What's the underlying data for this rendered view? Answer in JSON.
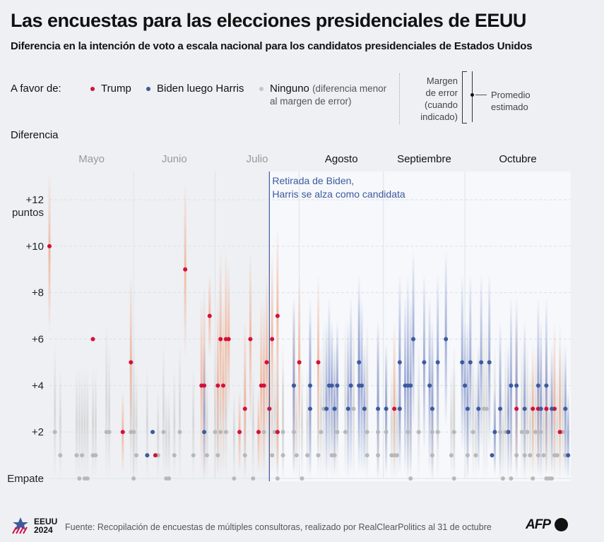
{
  "header": {
    "title": "Las encuestas para las elecciones presidenciales de EEUU",
    "subtitle": "Diferencia en la intención de voto a escala nacional para los candidatos presidenciales de Estados Unidos"
  },
  "legend": {
    "label": "A favor de:",
    "items": [
      {
        "key": "trump",
        "label": "Trump",
        "color": "#d50f3c"
      },
      {
        "key": "dem",
        "label": "Biden luego Harris",
        "color": "#3d5a9e"
      },
      {
        "key": "none",
        "label": "Ninguno",
        "note": "(diferencia menor al margen de error)",
        "color": "#b8b8b8"
      }
    ],
    "moe_label": "Margen de error (cuando indicado)",
    "avg_label": "Promedio estimado"
  },
  "colors": {
    "trump": "#d50f3c",
    "trump_band": "#f0b49a",
    "dem": "#3d5a9e",
    "dem_band": "#8e9dcf",
    "none": "#b8b8b8",
    "none_band": "#d4d4d4",
    "annotation": "#3d5a9e"
  },
  "chart_data": {
    "type": "scatter",
    "title": "Las encuestas para las elecciones presidenciales de EEUU",
    "ylabel": "Diferencia",
    "ylim": [
      0,
      13
    ],
    "yticks": [
      {
        "value": 0,
        "label": "Empate"
      },
      {
        "value": 2,
        "label": "+2"
      },
      {
        "value": 4,
        "label": "+4"
      },
      {
        "value": 6,
        "label": "+6"
      },
      {
        "value": 8,
        "label": "+8"
      },
      {
        "value": 10,
        "label": "+10"
      },
      {
        "value": 12,
        "label": "+12",
        "sublabel": "puntos"
      }
    ],
    "x_unit": "day index from 1 May 2024",
    "xlim": [
      0,
      183
    ],
    "months": [
      {
        "label": "Mayo",
        "start": 0,
        "active": false
      },
      {
        "label": "Junio",
        "start": 31,
        "active": false
      },
      {
        "label": "Julio",
        "start": 61,
        "active": false
      },
      {
        "label": "Agosto",
        "start": 92,
        "active": true
      },
      {
        "label": "Septiembre",
        "start": 123,
        "active": true
      },
      {
        "label": "Octubre",
        "start": 153,
        "active": true
      }
    ],
    "annotation": {
      "x": 81,
      "text_line1": "Retirada de Biden,",
      "text_line2": "Harris se alza como candidata"
    },
    "grid": true,
    "series": [
      {
        "name": "Trump",
        "key": "trump",
        "points": [
          [
            0,
            10,
            3
          ],
          [
            16,
            6,
            0
          ],
          [
            27,
            2,
            1
          ],
          [
            30,
            5,
            3
          ],
          [
            39,
            1,
            0
          ],
          [
            50,
            9,
            3
          ],
          [
            56,
            4,
            3
          ],
          [
            57,
            4,
            3.5
          ],
          [
            59,
            7,
            1
          ],
          [
            62,
            4,
            3
          ],
          [
            63,
            6,
            3
          ],
          [
            64,
            4,
            3
          ],
          [
            65,
            6,
            3
          ],
          [
            66,
            6,
            2.5
          ],
          [
            70,
            2,
            1
          ],
          [
            72,
            3,
            3
          ],
          [
            74,
            6,
            3
          ],
          [
            77,
            2,
            1
          ],
          [
            78,
            4,
            3
          ],
          [
            79,
            4,
            3
          ],
          [
            80,
            5,
            3
          ],
          [
            81,
            3,
            3
          ],
          [
            82,
            6,
            3
          ],
          [
            84,
            2,
            2
          ],
          [
            84,
            7,
            3
          ],
          [
            90,
            4,
            3
          ],
          [
            92,
            5,
            3
          ],
          [
            99,
            5,
            3
          ],
          [
            127,
            3,
            3
          ],
          [
            172,
            3,
            3
          ],
          [
            178,
            3,
            2
          ],
          [
            180,
            3,
            2
          ],
          [
            183,
            3,
            2
          ],
          [
            186,
            3,
            3
          ],
          [
            188,
            2,
            3
          ]
        ]
      },
      {
        "name": "Biden luego Harris",
        "key": "dem",
        "points": [
          [
            36,
            1,
            0
          ],
          [
            38,
            2,
            0
          ],
          [
            57,
            2,
            3
          ],
          [
            90,
            4,
            3
          ],
          [
            96,
            4,
            3
          ],
          [
            96,
            3,
            3
          ],
          [
            102,
            3,
            3
          ],
          [
            103,
            4,
            3
          ],
          [
            104,
            4,
            2
          ],
          [
            105,
            3,
            2
          ],
          [
            106,
            4,
            2
          ],
          [
            110,
            3,
            3
          ],
          [
            111,
            4,
            3
          ],
          [
            114,
            4,
            3
          ],
          [
            114,
            5,
            3
          ],
          [
            115,
            4,
            3
          ],
          [
            116,
            3,
            2
          ],
          [
            121,
            3,
            3
          ],
          [
            124,
            3,
            2
          ],
          [
            129,
            5,
            3
          ],
          [
            129,
            3,
            2
          ],
          [
            131,
            4,
            3
          ],
          [
            132,
            4,
            4
          ],
          [
            133,
            4,
            3
          ],
          [
            134,
            6,
            3
          ],
          [
            138,
            5,
            3
          ],
          [
            140,
            4,
            3
          ],
          [
            141,
            3,
            3
          ],
          [
            143,
            5,
            3
          ],
          [
            146,
            6,
            3
          ],
          [
            152,
            5,
            3
          ],
          [
            153,
            4,
            2
          ],
          [
            154,
            3,
            3
          ],
          [
            155,
            5,
            3
          ],
          [
            158,
            3,
            2
          ],
          [
            159,
            5,
            3
          ],
          [
            162,
            5,
            3
          ],
          [
            163,
            1,
            0
          ],
          [
            164,
            2,
            1
          ],
          [
            166,
            3,
            3
          ],
          [
            169,
            2,
            3
          ],
          [
            170,
            4,
            3
          ],
          [
            172,
            4,
            3
          ],
          [
            175,
            3,
            3
          ],
          [
            180,
            4,
            3
          ],
          [
            181,
            3,
            3
          ],
          [
            183,
            4,
            3
          ],
          [
            185,
            3,
            2
          ],
          [
            190,
            3,
            2
          ],
          [
            191,
            1,
            2
          ]
        ]
      },
      {
        "name": "Ninguno",
        "key": "none",
        "points": [
          [
            2,
            2,
            3
          ],
          [
            4,
            1,
            3
          ],
          [
            10,
            1,
            3
          ],
          [
            11,
            0,
            4
          ],
          [
            12,
            1,
            3
          ],
          [
            13,
            0,
            4
          ],
          [
            14,
            0,
            4
          ],
          [
            16,
            1,
            3
          ],
          [
            17,
            1,
            3
          ],
          [
            21,
            2,
            4
          ],
          [
            22,
            2,
            3
          ],
          [
            30,
            2,
            4
          ],
          [
            31,
            2,
            3
          ],
          [
            31,
            0,
            3
          ],
          [
            32,
            1,
            3
          ],
          [
            36,
            1,
            3
          ],
          [
            40,
            1,
            2
          ],
          [
            42,
            2,
            3
          ],
          [
            43,
            0,
            3
          ],
          [
            44,
            0,
            3
          ],
          [
            46,
            1,
            3
          ],
          [
            48,
            2,
            3
          ],
          [
            53,
            1,
            3
          ],
          [
            58,
            1,
            3
          ],
          [
            61,
            2,
            3
          ],
          [
            62,
            1,
            3
          ],
          [
            63,
            2,
            3
          ],
          [
            65,
            2,
            3
          ],
          [
            68,
            0,
            3
          ],
          [
            72,
            1,
            3
          ],
          [
            75,
            0,
            4
          ],
          [
            79,
            2,
            3
          ],
          [
            82,
            1,
            3
          ],
          [
            83,
            2,
            3
          ],
          [
            84,
            0,
            4
          ],
          [
            84,
            2,
            4
          ],
          [
            86,
            1,
            3
          ],
          [
            86,
            2,
            3
          ],
          [
            90,
            2,
            3
          ],
          [
            91,
            1,
            3
          ],
          [
            93,
            0,
            4
          ],
          [
            95,
            1,
            3
          ],
          [
            99,
            1,
            3
          ],
          [
            100,
            2,
            3
          ],
          [
            101,
            3,
            3
          ],
          [
            104,
            1,
            3
          ],
          [
            105,
            1,
            3
          ],
          [
            106,
            2,
            3
          ],
          [
            109,
            2,
            4
          ],
          [
            112,
            3,
            3
          ],
          [
            117,
            1,
            4
          ],
          [
            117,
            2,
            4
          ],
          [
            121,
            1,
            4
          ],
          [
            121,
            2,
            4
          ],
          [
            124,
            2,
            3
          ],
          [
            126,
            1,
            3
          ],
          [
            127,
            1,
            3
          ],
          [
            128,
            1,
            3
          ],
          [
            132,
            2,
            3
          ],
          [
            133,
            0,
            4
          ],
          [
            136,
            2,
            3
          ],
          [
            141,
            2,
            3
          ],
          [
            141,
            1,
            3
          ],
          [
            143,
            2,
            3
          ],
          [
            148,
            1,
            3
          ],
          [
            149,
            0,
            4
          ],
          [
            149,
            2,
            3
          ],
          [
            154,
            1,
            3
          ],
          [
            156,
            2,
            3
          ],
          [
            157,
            1,
            3
          ],
          [
            160,
            3,
            3
          ],
          [
            161,
            3,
            3
          ],
          [
            164,
            2,
            3
          ],
          [
            166,
            2,
            3
          ],
          [
            167,
            0,
            3
          ],
          [
            168,
            2,
            3
          ],
          [
            170,
            0,
            4
          ],
          [
            172,
            1,
            3
          ],
          [
            174,
            2,
            3
          ],
          [
            175,
            1,
            3
          ],
          [
            176,
            2,
            3
          ],
          [
            177,
            1,
            3
          ],
          [
            178,
            0,
            4
          ],
          [
            179,
            2,
            3
          ],
          [
            180,
            1,
            3
          ],
          [
            181,
            2,
            3
          ],
          [
            182,
            1,
            3
          ],
          [
            183,
            0,
            4
          ],
          [
            184,
            0,
            4
          ],
          [
            185,
            0,
            4
          ],
          [
            186,
            1,
            3
          ],
          [
            187,
            1,
            3
          ],
          [
            188,
            2,
            4
          ],
          [
            189,
            2,
            3
          ],
          [
            190,
            1,
            3
          ]
        ]
      }
    ]
  },
  "footer": {
    "logo_line1": "EEUU",
    "logo_line2": "2024",
    "source": "Fuente: Recopilación de encuestas de múltiples consultoras, realizado por RealClearPolitics al 31 de octubre",
    "agency": "AFP"
  }
}
